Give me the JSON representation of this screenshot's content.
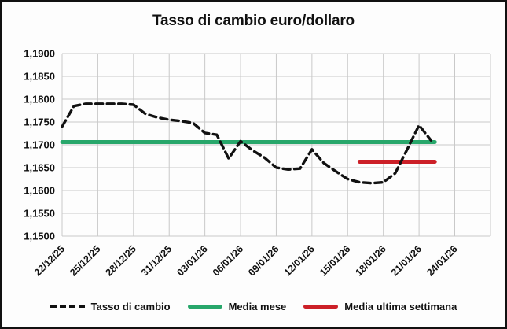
{
  "chart_data": {
    "type": "line",
    "title": "Tasso di cambio euro/dollaro",
    "xlabel": "",
    "ylabel": "",
    "ylim": [
      1.15,
      1.19
    ],
    "y_tick_step": 0.005,
    "y_tick_labels": [
      "1,1900",
      "1,1850",
      "1,1800",
      "1,1750",
      "1,1700",
      "1,1650",
      "1,1600",
      "1,1550",
      "1,1500"
    ],
    "x_tick_labels": [
      "22/12/25",
      "25/12/25",
      "28/12/25",
      "31/12/25",
      "03/01/26",
      "06/01/26",
      "09/01/26",
      "12/01/26",
      "15/01/26",
      "18/01/26",
      "21/01/26",
      "24/01/26"
    ],
    "x_tick_every_days": 3,
    "grid": true,
    "legend_position": "bottom",
    "colors": {
      "tasso": "#111111",
      "media_mese": "#28a76b",
      "media_settimana": "#cc2028",
      "gridline": "#c9c9c9"
    },
    "series": [
      {
        "name": "Tasso di cambio",
        "style": "dashed",
        "color": "#111111",
        "dates": [
          "22/12/25",
          "23/12/25",
          "24/12/25",
          "25/12/25",
          "26/12/25",
          "27/12/25",
          "28/12/25",
          "29/12/25",
          "30/12/25",
          "31/12/25",
          "01/01/26",
          "02/01/26",
          "03/01/26",
          "04/01/26",
          "05/01/26",
          "06/01/26",
          "07/01/26",
          "08/01/26",
          "09/01/26",
          "10/01/26",
          "11/01/26",
          "12/01/26",
          "13/01/26",
          "14/01/26",
          "15/01/26",
          "16/01/26",
          "17/01/26",
          "18/01/26",
          "19/01/26",
          "20/01/26",
          "21/01/26",
          "22/01/26"
        ],
        "values": [
          1.174,
          1.1785,
          1.179,
          1.179,
          1.179,
          1.179,
          1.1788,
          1.1768,
          1.176,
          1.1755,
          1.1752,
          1.1748,
          1.1726,
          1.1722,
          1.167,
          1.1708,
          1.1688,
          1.1672,
          1.165,
          1.1646,
          1.1648,
          1.169,
          1.166,
          1.1642,
          1.1625,
          1.1618,
          1.1616,
          1.1618,
          1.1638,
          1.169,
          1.1743,
          1.171
        ]
      },
      {
        "name": "Media mese",
        "style": "solid",
        "color": "#28a76b",
        "value": 1.1706,
        "start_date": "22/12/25",
        "end_date": "22/01/26"
      },
      {
        "name": "Media ultima settimana",
        "style": "solid",
        "color": "#cc2028",
        "value": 1.1663,
        "start_date": "16/01/26",
        "end_date": "22/01/26"
      }
    ],
    "legend": {
      "entries": [
        "Tasso di cambio",
        "Media mese",
        "Media ultima settimana"
      ]
    }
  }
}
